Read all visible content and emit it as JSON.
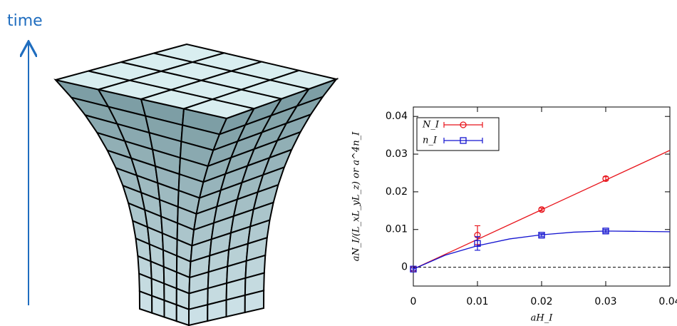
{
  "diagram": {
    "label": "time"
  },
  "chart_data": {
    "type": "scatter",
    "xlabel": "aH_I",
    "ylabel": "aN_I/(L_xL_yL_z)  or  a^4n_I",
    "xlim": [
      0,
      0.04
    ],
    "ylim": [
      -0.005,
      0.0425
    ],
    "xticks": [
      0,
      0.01,
      0.02,
      0.03,
      0.04
    ],
    "yticks": [
      0,
      0.01,
      0.02,
      0.03,
      0.04
    ],
    "hline": 0,
    "legend": "upper left",
    "series": [
      {
        "name": "N_I",
        "color": "#e8141b",
        "marker": "circle",
        "x": [
          0,
          0.01,
          0.02,
          0.03
        ],
        "values": [
          -0.0005,
          0.0085,
          0.0153,
          0.0235
        ],
        "errors": [
          0.0003,
          0.0025,
          0.0004,
          0.0005
        ],
        "fit_x": [
          0,
          0.04
        ],
        "fit_y": [
          -0.0005,
          0.031
        ]
      },
      {
        "name": "n_I",
        "color": "#1414d0",
        "marker": "square",
        "x": [
          0,
          0.01,
          0.02,
          0.03
        ],
        "values": [
          -0.0005,
          0.0063,
          0.0085,
          0.0096
        ],
        "errors": [
          0.0003,
          0.0018,
          0.0004,
          0.0004
        ],
        "fit_x": [
          0,
          0.005,
          0.01,
          0.015,
          0.02,
          0.025,
          0.03,
          0.035,
          0.04
        ],
        "fit_y": [
          -0.0005,
          0.0032,
          0.0057,
          0.0075,
          0.0086,
          0.0093,
          0.0096,
          0.0095,
          0.0094
        ]
      }
    ]
  }
}
